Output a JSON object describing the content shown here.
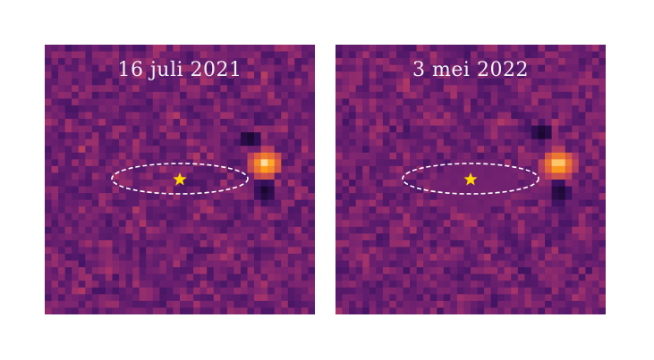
{
  "panels": [
    {
      "date_label": "16 juli 2021",
      "id": "left"
    },
    {
      "date_label": "3 mei 2022",
      "id": "right"
    }
  ],
  "colors": {
    "background_magenta": "#6e1f6e",
    "orbit_line": "#ffffff",
    "star_marker": "#ffd400",
    "planet_core": "#fffbe8",
    "planet_glow": "#ff9a1f",
    "dark_lobe": "#0c0418"
  },
  "icons": {
    "star_marker": "star-icon"
  }
}
